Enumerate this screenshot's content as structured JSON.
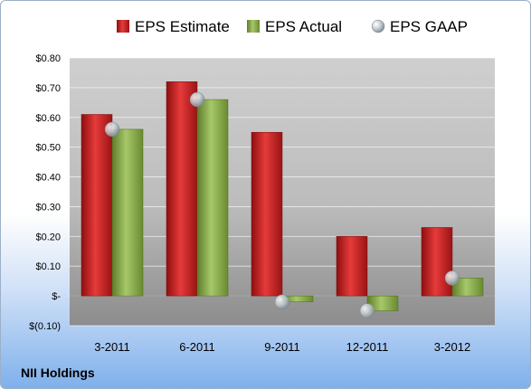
{
  "company": "NII Holdings",
  "colors": {
    "estimate": "#d42a2a",
    "actual": "#8cb04a",
    "gaap": "#b8c4cc"
  },
  "chart_data": {
    "type": "bar",
    "categories": [
      "3-2011",
      "6-2011",
      "9-2011",
      "12-2011",
      "3-2012"
    ],
    "series": [
      {
        "name": "EPS Estimate",
        "values": [
          0.61,
          0.72,
          0.55,
          0.2,
          0.23
        ]
      },
      {
        "name": "EPS Actual",
        "values": [
          0.56,
          0.66,
          -0.02,
          -0.05,
          0.06
        ]
      },
      {
        "name": "EPS GAAP",
        "values": [
          0.56,
          0.66,
          -0.02,
          -0.05,
          0.06
        ]
      }
    ],
    "yticks": [
      0.8,
      0.7,
      0.6,
      0.5,
      0.4,
      0.3,
      0.2,
      0.1,
      0,
      -0.1
    ],
    "ytick_labels": [
      "$0.80",
      "$0.70",
      "$0.60",
      "$0.50",
      "$0.40",
      "$0.30",
      "$0.20",
      "$0.10",
      "$-",
      "$(0.10)"
    ],
    "ylim": [
      -0.1,
      0.8
    ],
    "grid": true,
    "legend_position": "top"
  }
}
